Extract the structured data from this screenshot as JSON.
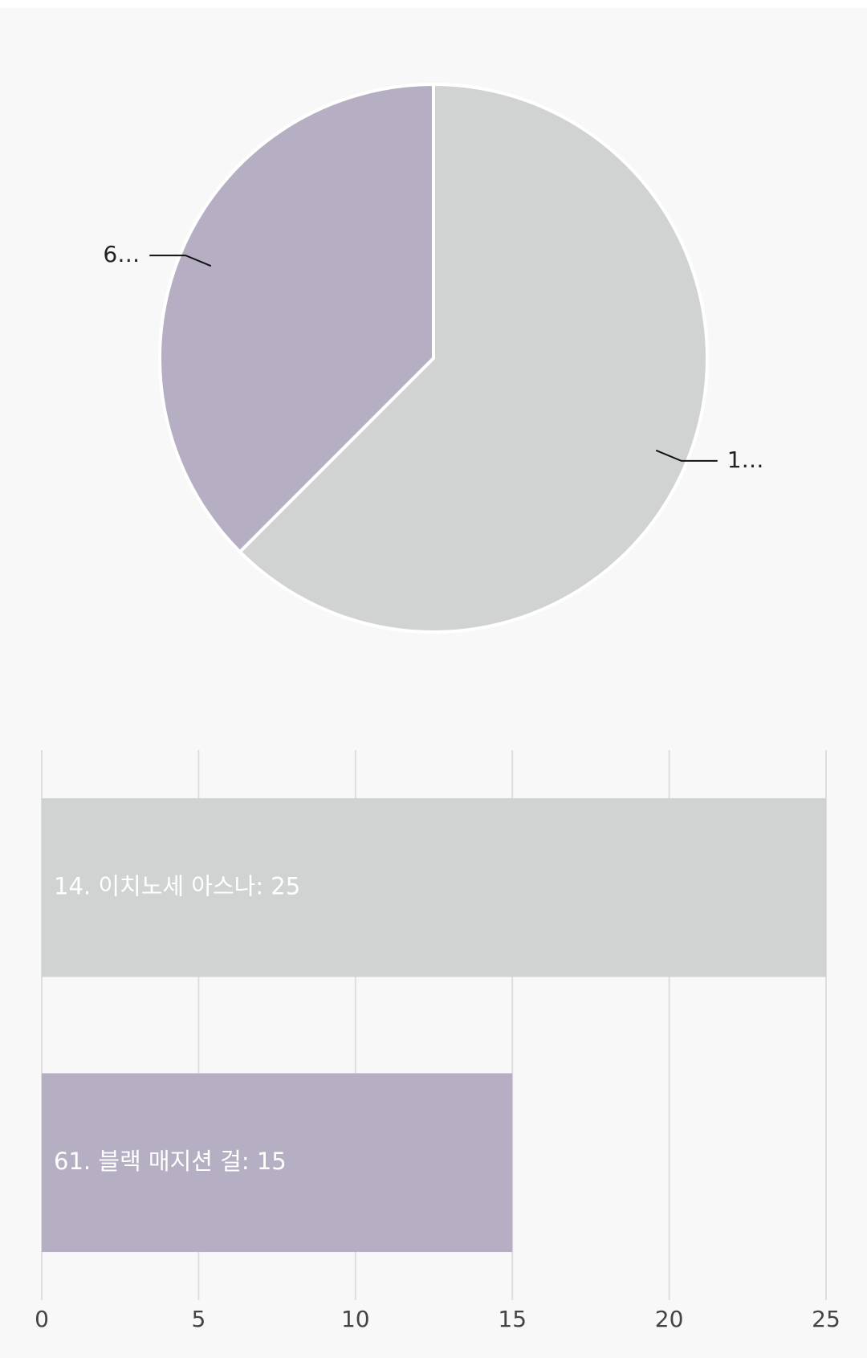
{
  "chart_data": [
    {
      "type": "pie",
      "categories": [
        "1…",
        "6…"
      ],
      "values": [
        25,
        15
      ],
      "colors": [
        "#d1d3d2",
        "#b6afc3"
      ]
    },
    {
      "type": "bar",
      "orientation": "horizontal",
      "values": [
        25,
        15
      ],
      "value_labels": [
        "14. 이치노세 아스나: 25",
        "61. 블랙 매지션 걸: 15"
      ],
      "colors": [
        "#d1d3d2",
        "#b6afc3"
      ],
      "xlim": [
        0,
        25
      ],
      "xticks": [
        0,
        5,
        10,
        15,
        20,
        25
      ],
      "grid": true
    }
  ]
}
